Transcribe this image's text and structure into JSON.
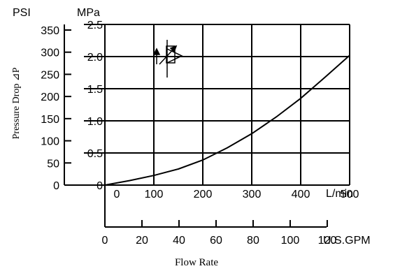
{
  "chart_data": {
    "type": "line",
    "title": "",
    "y_label": "Pressure Drop ⊿P",
    "x_label": "Flow Rate",
    "y_axes": [
      {
        "unit": "PSI",
        "ticks": [
          "0",
          "50",
          "100",
          "150",
          "200",
          "250",
          "300",
          "350"
        ],
        "range": [
          0,
          362.6
        ]
      },
      {
        "unit": "MPa",
        "ticks": [
          "0",
          "0.5",
          "1.0",
          "1.5",
          "2.0",
          "2.5"
        ],
        "range": [
          0,
          2.5
        ]
      }
    ],
    "x_axes": [
      {
        "unit": "L/min",
        "ticks": [
          "0",
          "100",
          "200",
          "300",
          "400",
          "500"
        ],
        "range": [
          0,
          500
        ]
      },
      {
        "unit": "U.S.GPM",
        "ticks": [
          "0",
          "20",
          "40",
          "60",
          "80",
          "100",
          "120"
        ],
        "range": [
          0,
          132.1
        ]
      }
    ],
    "series": [
      {
        "x": [
          0,
          50,
          100,
          150,
          200,
          250,
          300,
          350,
          400,
          450,
          500
        ],
        "y": [
          0,
          0.07,
          0.15,
          0.25,
          0.39,
          0.58,
          0.8,
          1.06,
          1.35,
          1.68,
          2.02
        ]
      }
    ],
    "grid": true,
    "legend": "none"
  },
  "symbol": {
    "name": "throttle-check-valve-symbol"
  }
}
